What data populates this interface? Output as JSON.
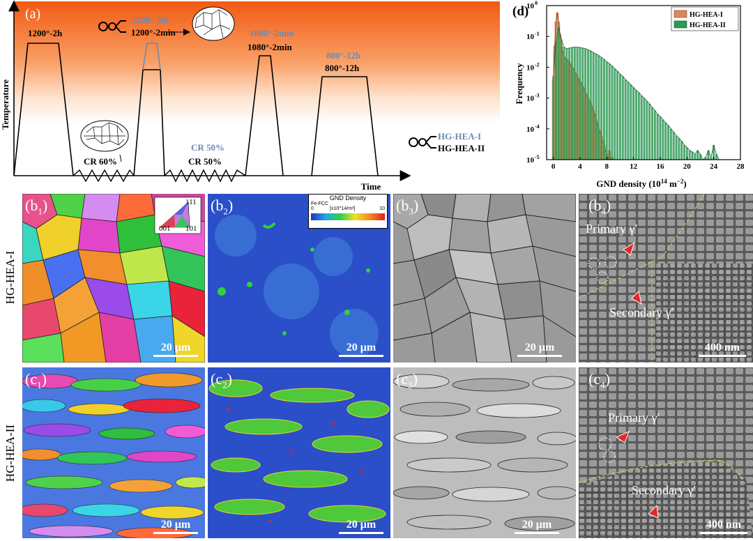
{
  "panel_a": {
    "label": "(a)",
    "ylabel": "Temperature",
    "xlabel": "Time",
    "steps": {
      "s1": "1200°-2h",
      "s2_grey": "1200°-30s",
      "s2_black": "1200°-2min",
      "s3_grey": "1080°-2min",
      "s3_black": "1080°-2min",
      "s4_grey": "800°-12h",
      "s4_black": "800°-12h",
      "cr1": "CR 60%",
      "cr2_grey": "CR 50%",
      "cr2_black": "CR 50%"
    },
    "legend": {
      "i": "HG-HEA-I",
      "ii": "HG-HEA-II"
    }
  },
  "panel_d": {
    "label": "(d)",
    "chart_data": {
      "type": "bar",
      "title": "",
      "xlabel": "GND density (10",
      "xlabel_sup": "14",
      "xlabel_tail": " m",
      "xlabel_sup2": "−2",
      "xlabel_end": ")",
      "ylabel": "Frequency",
      "xlim": [
        -1,
        28
      ],
      "yscale": "log",
      "ylim": [
        1e-05,
        1
      ],
      "xticks": [
        "0",
        "4",
        "8",
        "12",
        "16",
        "20",
        "24",
        "28"
      ],
      "xtick_values": [
        0,
        4,
        8,
        12,
        16,
        20,
        24,
        28
      ],
      "ytick_values": [
        1,
        0.1,
        0.01,
        0.001,
        0.0001,
        1e-05
      ],
      "yticks_base": [
        "10",
        "10",
        "10",
        "10",
        "10",
        "10"
      ],
      "yticks_exp": [
        "0",
        "-1",
        "-2",
        "-3",
        "-4",
        "-5"
      ],
      "series": [
        {
          "name": "HG-HEA-I",
          "color": "#d9885a",
          "x": [
            0.0,
            0.2,
            0.4,
            0.6,
            0.8,
            1.0,
            1.2,
            1.4,
            1.6,
            1.8,
            2.0,
            2.2,
            2.4,
            2.6,
            2.8,
            3.0,
            3.2,
            3.4,
            3.6,
            3.8,
            4.0,
            4.2,
            4.4,
            4.6,
            4.8,
            5.0,
            5.2,
            5.4,
            5.6,
            5.8,
            6.0,
            6.2,
            6.4,
            6.6,
            6.8,
            7.0,
            7.2,
            7.4,
            7.6,
            7.8,
            8.0,
            8.2,
            8.4,
            8.6,
            8.8,
            9.0
          ],
          "values": [
            0.004,
            0.05,
            0.3,
            0.6,
            0.3,
            0.12,
            0.05,
            0.03,
            0.022,
            0.02,
            0.019,
            0.016,
            0.015,
            0.012,
            0.01,
            0.009,
            0.007,
            0.006,
            0.005,
            0.004,
            0.0035,
            0.003,
            0.0025,
            0.002,
            0.0015,
            0.0012,
            0.001,
            0.0008,
            0.0007,
            0.0005,
            0.0004,
            0.0003,
            0.0002,
            0.00015,
            0.0001,
            8e-05,
            6e-05,
            4e-05,
            3e-05,
            2e-05,
            1.5e-05,
            1e-05,
            2e-05,
            1e-05,
            1.2e-05,
            1e-05
          ]
        },
        {
          "name": "HG-HEA-II",
          "color": "#2e9a55",
          "x": [
            0.0,
            0.4,
            0.8,
            1.2,
            1.6,
            2.0,
            2.4,
            2.8,
            3.2,
            3.6,
            4.0,
            4.4,
            4.8,
            5.2,
            5.6,
            6.0,
            6.4,
            6.8,
            7.2,
            7.6,
            8.0,
            8.4,
            8.8,
            9.2,
            9.6,
            10.0,
            10.4,
            10.8,
            11.2,
            11.6,
            12.0,
            12.4,
            12.8,
            13.2,
            13.6,
            14.0,
            14.4,
            14.8,
            15.2,
            15.6,
            16.0,
            16.4,
            16.8,
            17.2,
            17.6,
            18.0,
            18.4,
            18.8,
            19.2,
            19.6,
            20.0,
            20.4,
            20.8,
            21.2,
            21.6,
            22.0,
            22.4,
            22.8,
            23.2,
            23.6,
            24.0,
            24.4,
            24.8,
            25.2
          ],
          "values": [
            0.005,
            0.07,
            0.2,
            0.08,
            0.045,
            0.04,
            0.042,
            0.044,
            0.045,
            0.045,
            0.044,
            0.042,
            0.04,
            0.037,
            0.034,
            0.03,
            0.027,
            0.024,
            0.021,
            0.018,
            0.015,
            0.013,
            0.011,
            0.009,
            0.0075,
            0.006,
            0.005,
            0.004,
            0.0033,
            0.0027,
            0.0022,
            0.0018,
            0.0015,
            0.0012,
            0.001,
            0.0008,
            0.00065,
            0.0005,
            0.0004,
            0.0003,
            0.00025,
            0.0002,
            0.00016,
            0.00013,
            0.0001,
            8e-05,
            6e-05,
            5e-05,
            4e-05,
            3e-05,
            2.5e-05,
            2e-05,
            1.8e-05,
            1.5e-05,
            2e-05,
            1.5e-05,
            1e-05,
            1.2e-05,
            2e-05,
            1.2e-05,
            3e-05,
            1.5e-05,
            1e-05,
            1e-05
          ]
        }
      ]
    }
  },
  "row_labels": {
    "b": "HG-HEA-I",
    "c": "HG-HEA-II"
  },
  "tiles": {
    "b1": {
      "label": "(b",
      "sub": "1",
      "close": ")",
      "scale": "20 μm",
      "ipf": {
        "t": "111",
        "bl": "001",
        "br": "101"
      }
    },
    "b2": {
      "label": "(b",
      "sub": "2",
      "close": ")",
      "scale": "20 μm",
      "colorbar": {
        "title": "GND Density",
        "phase": "Fe-FCC",
        "min": "0",
        "unit": "[x10^14/m²]",
        "max": "10"
      }
    },
    "b3": {
      "label": "(b",
      "sub": "3",
      "close": ")",
      "scale": "20 μm"
    },
    "b4": {
      "label": "(b",
      "sub": "4",
      "close": ")",
      "scale": "400 nm",
      "primary": "Primary γ′",
      "secondary": "Secondary γ′"
    },
    "c1": {
      "label": "(c",
      "sub": "1",
      "close": ")",
      "scale": "20 μm"
    },
    "c2": {
      "label": "(c",
      "sub": "2",
      "close": ")",
      "scale": "20 μm"
    },
    "c3": {
      "label": "(c",
      "sub": "3",
      "close": ")",
      "scale": "20 μm"
    },
    "c4": {
      "label": "(c",
      "sub": "4",
      "close": ")",
      "scale": "400 nm",
      "primary": "Primary γ′",
      "secondary": "Secondary γ′"
    }
  }
}
